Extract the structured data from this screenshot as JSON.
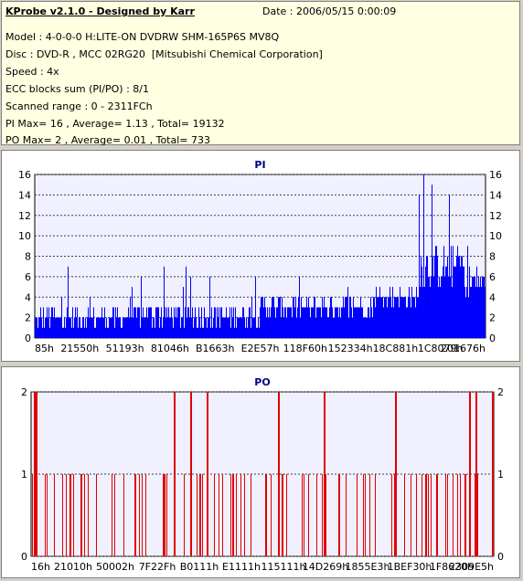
{
  "info": {
    "title": "KProbe v2.1.0 - Designed by Karr",
    "date": "Date : 2006/05/15 0:00:09",
    "model": "Model : 4-0-0-0 H:LITE-ON DVDRW SHM-165P6S MV8Q",
    "disc": "Disc : DVD-R , MCC 02RG20  [Mitsubishi Chemical Corporation]",
    "speed": "Speed : 4x",
    "ecc": "ECC blocks sum (PI/PO) : 8/1",
    "range": "Scanned range : 0 - 2311FCh",
    "pi": "PI Max= 16 , Average= 1.13 , Total= 19132",
    "po": "PO Max= 2 , Average= 0.01 , Total= 733"
  },
  "colors": {
    "pi_bar": "#0000ff",
    "po_bar": "#e00000",
    "plot_bg": "#f0f0ff",
    "title": "#000080"
  },
  "chart_data": [
    {
      "type": "bar",
      "title": "PI",
      "ylim": [
        0,
        16
      ],
      "yticks": [
        0,
        2,
        4,
        6,
        8,
        10,
        12,
        14,
        16
      ],
      "xticks": [
        "85h",
        "21550h",
        "51193h",
        "81046h",
        "B1663h",
        "E2E57h",
        "118F60h",
        "152334h",
        "18C881h",
        "1C8079h",
        "201676h"
      ],
      "grid": true,
      "segments": [
        {
          "from": 0.0,
          "to": 0.2,
          "base": 1,
          "amp": 2,
          "maxv": 11
        },
        {
          "from": 0.2,
          "to": 0.5,
          "base": 1,
          "amp": 2.5,
          "maxv": 7
        },
        {
          "from": 0.5,
          "to": 0.75,
          "base": 2,
          "amp": 2,
          "maxv": 6
        },
        {
          "from": 0.75,
          "to": 0.85,
          "base": 3,
          "amp": 2,
          "maxv": 6
        },
        {
          "from": 0.85,
          "to": 0.95,
          "base": 5,
          "amp": 4,
          "maxv": 16
        },
        {
          "from": 0.95,
          "to": 1.0,
          "base": 4,
          "amp": 3,
          "maxv": 12
        }
      ]
    },
    {
      "type": "bar",
      "title": "PO",
      "ylim": [
        0,
        2
      ],
      "yticks": [
        0,
        1,
        2
      ],
      "xticks": [
        "16h",
        "21010h",
        "50002h",
        "7F22Fh",
        "B0111h",
        "E1111h",
        "115111h",
        "14D269h",
        "1855E3h",
        "1BEF30h",
        "1F8620h",
        "2309E5h"
      ],
      "grid": true,
      "spikes2": [
        0.005,
        0.01,
        0.31,
        0.345,
        0.38,
        0.535,
        0.635,
        0.79,
        0.95,
        0.965,
        1.0
      ],
      "spikes1_count": 90
    }
  ]
}
